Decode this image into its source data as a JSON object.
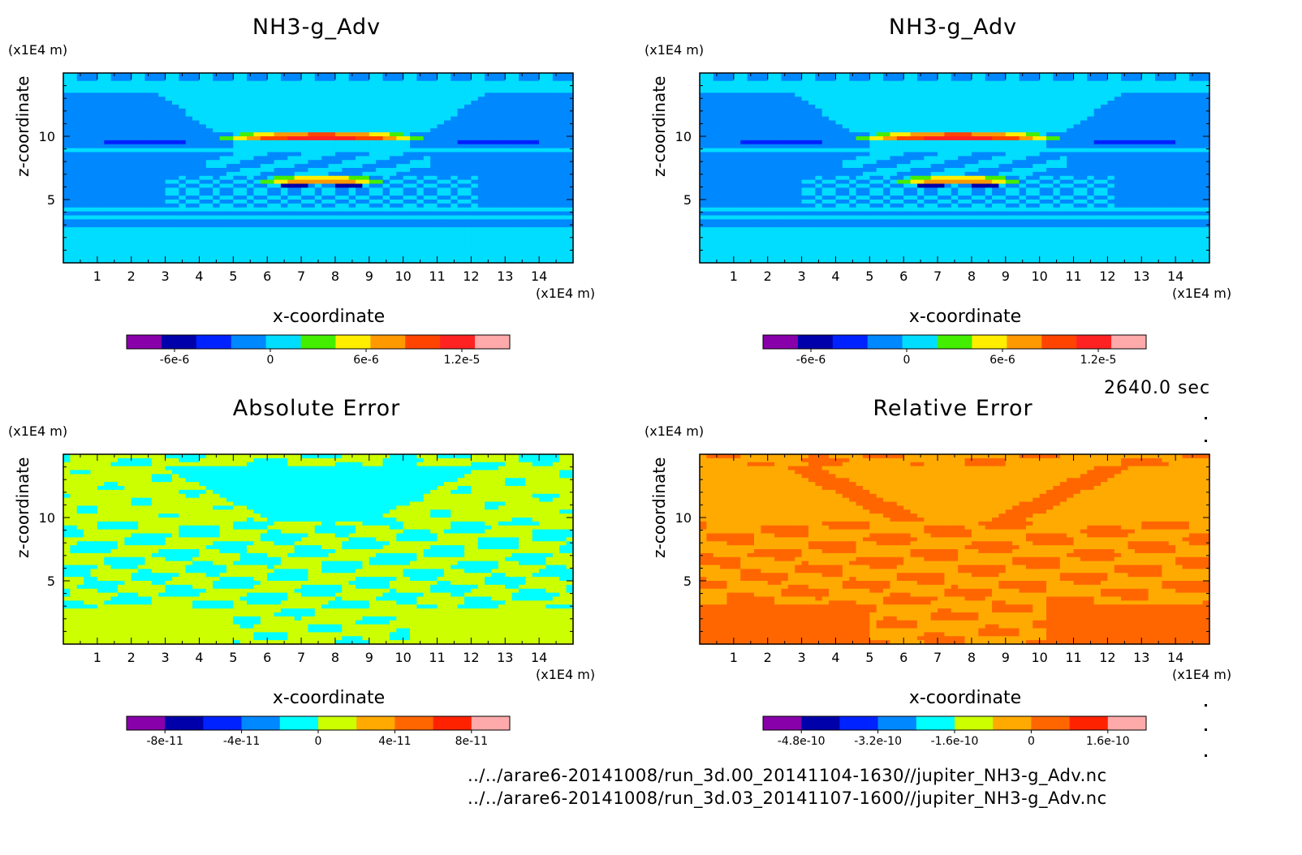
{
  "colors": {
    "scale10": [
      "#8800aa",
      "#0000aa",
      "#0022ff",
      "#0088ff",
      "#00ddff",
      "#44ee00",
      "#ffee00",
      "#ff9900",
      "#ff4400",
      "#ff2222",
      "#ffaaaa"
    ],
    "error10": [
      "#8800aa",
      "#0000aa",
      "#0022ff",
      "#0088ff",
      "#00ffff",
      "#ccff00",
      "#ffaa00",
      "#ff6600",
      "#ff2200",
      "#ffaaaa"
    ]
  },
  "panels": [
    {
      "title": "NH3-g_Adv",
      "ylabel": "z-coordinate",
      "xlabel": "x-coordinate",
      "unit_y": "(x1E4 m)",
      "unit_x": "(x1E4 m)",
      "colorbar_ticks": [
        "-6e-6",
        "0",
        "6e-6",
        "1.2e-5"
      ]
    },
    {
      "title": "NH3-g_Adv",
      "ylabel": "z-coordinate",
      "xlabel": "x-coordinate",
      "unit_y": "(x1E4 m)",
      "unit_x": "(x1E4 m)",
      "colorbar_ticks": [
        "-6e-6",
        "0",
        "6e-6",
        "1.2e-5"
      ]
    },
    {
      "title": "Absolute Error",
      "ylabel": "z-coordinate",
      "xlabel": "x-coordinate",
      "unit_y": "(x1E4 m)",
      "unit_x": "(x1E4 m)",
      "colorbar_ticks": [
        "-8e-11",
        "-4e-11",
        "0",
        "4e-11",
        "8e-11"
      ]
    },
    {
      "title": "Relative Error",
      "ylabel": "z-coordinate",
      "xlabel": "x-coordinate",
      "unit_y": "(x1E4 m)",
      "unit_x": "(x1E4 m)",
      "colorbar_ticks": [
        "-4.8e-10",
        "-3.2e-10",
        "-1.6e-10",
        "0",
        "1.6e-10"
      ]
    }
  ],
  "time_label": "2640.0 sec",
  "footer": [
    "../../arare6-20141008/run_3d.00_20141104-1630//jupiter_NH3-g_Adv.nc",
    "../../arare6-20141008/run_3d.03_20141107-1600//jupiter_NH3-g_Adv.nc"
  ],
  "chart_data": [
    {
      "type": "heatmap",
      "title": "NH3-g_Adv",
      "xlabel": "x-coordinate",
      "ylabel": "z-coordinate",
      "xlim": [
        0,
        15
      ],
      "ylim": [
        0,
        15
      ],
      "xticks": [
        1,
        2,
        3,
        4,
        5,
        6,
        7,
        8,
        9,
        10,
        11,
        12,
        13,
        14
      ],
      "yticks": [
        5,
        10
      ],
      "colorbar": {
        "ticks": [
          -6e-06,
          0,
          6e-06,
          1.2e-05
        ],
        "labels": [
          "-6e-6",
          "0",
          "6e-6",
          "1.2e-5"
        ],
        "levels": 11
      },
      "field": "steady",
      "features": [
        {
          "x": 7.6,
          "z": 9.9,
          "value": 1.2e-05
        },
        {
          "x": 7.6,
          "z": 6.5,
          "value": 8e-06
        },
        {
          "x": 7.6,
          "z": 6.1,
          "value": -6e-06
        }
      ]
    },
    {
      "type": "heatmap",
      "title": "NH3-g_Adv",
      "xlabel": "x-coordinate",
      "ylabel": "z-coordinate",
      "xlim": [
        0,
        15
      ],
      "ylim": [
        0,
        15
      ],
      "xticks": [
        1,
        2,
        3,
        4,
        5,
        6,
        7,
        8,
        9,
        10,
        11,
        12,
        13,
        14
      ],
      "yticks": [
        5,
        10
      ],
      "colorbar": {
        "ticks": [
          -6e-06,
          0,
          6e-06,
          1.2e-05
        ],
        "labels": [
          "-6e-6",
          "0",
          "6e-6",
          "1.2e-5"
        ],
        "levels": 11
      },
      "field": "steady",
      "features": [
        {
          "x": 7.6,
          "z": 9.9,
          "value": 1.2e-05
        },
        {
          "x": 7.6,
          "z": 6.5,
          "value": 8e-06
        },
        {
          "x": 7.6,
          "z": 6.1,
          "value": -6e-06
        }
      ]
    },
    {
      "type": "heatmap",
      "title": "Absolute Error",
      "xlabel": "x-coordinate",
      "ylabel": "z-coordinate",
      "xlim": [
        0,
        15
      ],
      "ylim": [
        0,
        15
      ],
      "xticks": [
        1,
        2,
        3,
        4,
        5,
        6,
        7,
        8,
        9,
        10,
        11,
        12,
        13,
        14
      ],
      "yticks": [
        5,
        10
      ],
      "colorbar": {
        "ticks": [
          -8e-11,
          -4e-11,
          0,
          4e-11,
          8e-11
        ],
        "labels": [
          "-8e-11",
          "-4e-11",
          "0",
          "4e-11",
          "8e-11"
        ],
        "levels": 10
      },
      "field": "absolute-error"
    },
    {
      "type": "heatmap",
      "title": "Relative Error",
      "xlabel": "x-coordinate",
      "ylabel": "z-coordinate",
      "xlim": [
        0,
        15
      ],
      "ylim": [
        0,
        15
      ],
      "xticks": [
        1,
        2,
        3,
        4,
        5,
        6,
        7,
        8,
        9,
        10,
        11,
        12,
        13,
        14
      ],
      "yticks": [
        5,
        10
      ],
      "colorbar": {
        "ticks": [
          -4.8e-10,
          -3.2e-10,
          -1.6e-10,
          0,
          1.6e-10
        ],
        "labels": [
          "-4.8e-10",
          "-3.2e-10",
          "-1.6e-10",
          "0",
          "1.6e-10"
        ],
        "levels": 10
      },
      "field": "relative-error"
    }
  ]
}
